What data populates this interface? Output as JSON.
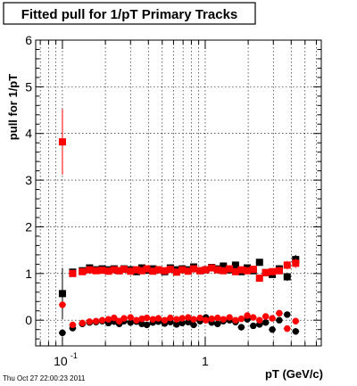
{
  "chart_data": {
    "type": "scatter",
    "title": "Fitted pull for 1/pT  Primary Tracks",
    "xlabel": "pT (GeV/c)",
    "ylabel": "pull for 1/pT",
    "xscale": "log",
    "xlim": [
      0.065,
      6.5
    ],
    "ylim": [
      -0.55,
      6
    ],
    "grid": true,
    "x_tick_labels": [
      {
        "value": 0.1,
        "base": "10",
        "exp": "-1"
      },
      {
        "value": 1,
        "base": "1",
        "exp": ""
      }
    ],
    "y_ticks": [
      0,
      1,
      2,
      3,
      4,
      5,
      6
    ],
    "footer": "Thu Oct 27 22:00:23 2011",
    "series": [
      {
        "marker": "square",
        "color": "#000000",
        "group": "upper",
        "x": [
          0.1,
          0.118,
          0.138,
          0.155,
          0.172,
          0.19,
          0.21,
          0.23,
          0.25,
          0.27,
          0.3,
          0.33,
          0.36,
          0.39,
          0.43,
          0.47,
          0.52,
          0.57,
          0.63,
          0.69,
          0.76,
          0.83,
          0.92,
          1.01,
          1.11,
          1.22,
          1.34,
          1.48,
          1.63,
          1.79,
          1.97,
          2.17,
          2.4,
          2.65,
          2.95,
          3.3,
          3.75,
          4.3
        ],
        "y": [
          0.57,
          1.03,
          1.06,
          1.12,
          1.08,
          1.1,
          1.08,
          1.1,
          1.06,
          1.1,
          1.08,
          1.04,
          1.12,
          1.07,
          1.1,
          1.08,
          1.04,
          1.12,
          1.08,
          1.1,
          1.08,
          1.14,
          1.06,
          1.08,
          1.13,
          1.1,
          1.16,
          1.08,
          1.18,
          1.04,
          1.12,
          1.06,
          1.24,
          1.02,
          0.98,
          1.1,
          0.93,
          1.3
        ],
        "err": [
          0.55,
          0.05,
          0.04,
          0.04,
          0.03,
          0.03,
          0.03,
          0.03,
          0.03,
          0.03,
          0.03,
          0.03,
          0.03,
          0.03,
          0.03,
          0.03,
          0.03,
          0.03,
          0.03,
          0.03,
          0.03,
          0.03,
          0.03,
          0.03,
          0.03,
          0.03,
          0.04,
          0.04,
          0.04,
          0.04,
          0.05,
          0.05,
          0.05,
          0.06,
          0.07,
          0.08,
          0.09,
          0.1
        ]
      },
      {
        "marker": "square",
        "color": "#ff0000",
        "group": "upper",
        "x": [
          0.1,
          0.118,
          0.138,
          0.155,
          0.172,
          0.19,
          0.21,
          0.23,
          0.25,
          0.27,
          0.3,
          0.33,
          0.36,
          0.39,
          0.43,
          0.47,
          0.52,
          0.57,
          0.63,
          0.69,
          0.76,
          0.83,
          0.92,
          1.01,
          1.11,
          1.22,
          1.34,
          1.48,
          1.63,
          1.79,
          1.97,
          2.17,
          2.4,
          2.65,
          2.95,
          3.3,
          3.75,
          4.3
        ],
        "y": [
          3.82,
          1.0,
          1.04,
          1.08,
          1.06,
          1.07,
          1.05,
          1.08,
          1.06,
          1.09,
          1.05,
          1.08,
          1.06,
          1.1,
          1.05,
          1.08,
          1.06,
          1.09,
          1.03,
          1.08,
          1.05,
          1.1,
          1.06,
          1.08,
          1.12,
          1.08,
          1.06,
          1.1,
          1.04,
          1.08,
          1.06,
          1.09,
          0.9,
          1.02,
          1.04,
          1.06,
          1.18,
          1.22
        ],
        "err": [
          0.7,
          0.05,
          0.04,
          0.04,
          0.03,
          0.03,
          0.03,
          0.03,
          0.03,
          0.03,
          0.03,
          0.03,
          0.03,
          0.03,
          0.03,
          0.03,
          0.03,
          0.03,
          0.03,
          0.03,
          0.03,
          0.03,
          0.03,
          0.03,
          0.03,
          0.03,
          0.04,
          0.04,
          0.04,
          0.04,
          0.05,
          0.05,
          0.05,
          0.06,
          0.07,
          0.08,
          0.09,
          0.1
        ]
      },
      {
        "marker": "circle",
        "color": "#000000",
        "group": "lower",
        "x": [
          0.1,
          0.118,
          0.138,
          0.155,
          0.172,
          0.19,
          0.21,
          0.23,
          0.25,
          0.27,
          0.3,
          0.33,
          0.36,
          0.39,
          0.43,
          0.47,
          0.52,
          0.57,
          0.63,
          0.69,
          0.76,
          0.83,
          0.92,
          1.01,
          1.11,
          1.22,
          1.34,
          1.48,
          1.63,
          1.79,
          1.97,
          2.17,
          2.4,
          2.65,
          2.95,
          3.3,
          3.75,
          4.3
        ],
        "y": [
          -0.27,
          -0.17,
          -0.08,
          -0.05,
          -0.04,
          -0.02,
          -0.06,
          -0.03,
          -0.08,
          -0.02,
          -0.05,
          -0.03,
          -0.08,
          -0.1,
          -0.05,
          -0.03,
          -0.07,
          -0.04,
          -0.09,
          -0.06,
          -0.04,
          -0.1,
          -0.02,
          0.06,
          -0.05,
          -0.08,
          -0.02,
          0.0,
          -0.04,
          -0.15,
          0.02,
          -0.12,
          -0.09,
          -0.05,
          -0.2,
          0.0,
          0.12,
          -0.24
        ],
        "err": [
          0.04,
          0.03,
          0.02,
          0.02,
          0.02,
          0.02,
          0.02,
          0.02,
          0.02,
          0.02,
          0.02,
          0.02,
          0.02,
          0.02,
          0.02,
          0.02,
          0.02,
          0.02,
          0.02,
          0.02,
          0.02,
          0.02,
          0.02,
          0.02,
          0.02,
          0.02,
          0.02,
          0.03,
          0.03,
          0.03,
          0.03,
          0.03,
          0.04,
          0.04,
          0.05,
          0.05,
          0.06,
          0.07
        ]
      },
      {
        "marker": "circle",
        "color": "#ff0000",
        "group": "lower",
        "x": [
          0.1,
          0.118,
          0.138,
          0.155,
          0.172,
          0.19,
          0.21,
          0.23,
          0.25,
          0.27,
          0.3,
          0.33,
          0.36,
          0.39,
          0.43,
          0.47,
          0.52,
          0.57,
          0.63,
          0.69,
          0.76,
          0.83,
          0.92,
          1.01,
          1.11,
          1.22,
          1.34,
          1.48,
          1.63,
          1.79,
          1.97,
          2.17,
          2.4,
          2.65,
          2.95,
          3.3,
          3.75,
          4.3
        ],
        "y": [
          0.33,
          -0.1,
          -0.06,
          -0.03,
          -0.02,
          0.0,
          0.02,
          0.05,
          -0.02,
          0.04,
          0.06,
          0.0,
          0.03,
          0.05,
          0.02,
          0.04,
          0.0,
          0.05,
          0.02,
          0.04,
          0.06,
          0.02,
          0.05,
          0.0,
          0.03,
          0.05,
          0.02,
          0.06,
          0.0,
          0.03,
          0.1,
          0.06,
          0.0,
          0.08,
          0.04,
          0.15,
          -0.18,
          -0.02
        ],
        "err": [
          0.04,
          0.03,
          0.02,
          0.02,
          0.02,
          0.02,
          0.02,
          0.02,
          0.02,
          0.02,
          0.02,
          0.02,
          0.02,
          0.02,
          0.02,
          0.02,
          0.02,
          0.02,
          0.02,
          0.02,
          0.02,
          0.02,
          0.02,
          0.02,
          0.02,
          0.02,
          0.02,
          0.03,
          0.03,
          0.03,
          0.03,
          0.03,
          0.04,
          0.04,
          0.05,
          0.05,
          0.06,
          0.07
        ]
      }
    ]
  }
}
